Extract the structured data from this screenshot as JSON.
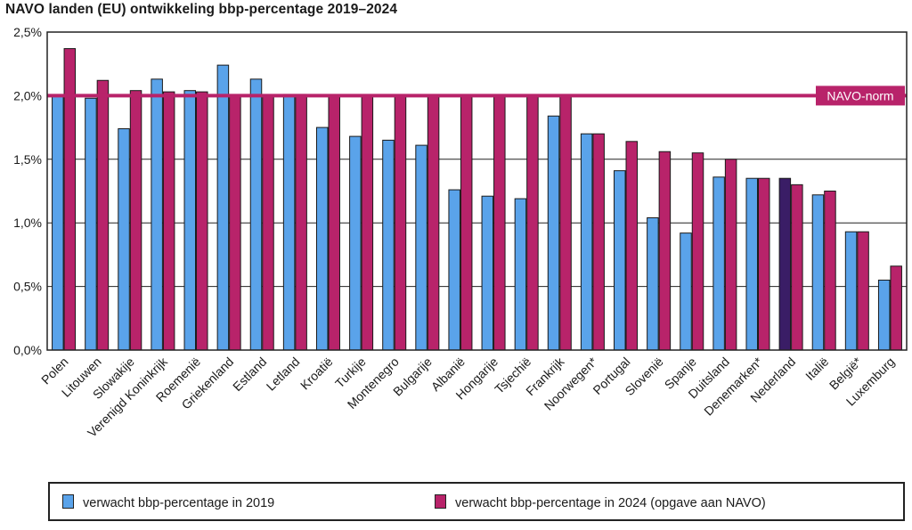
{
  "chart_data": {
    "type": "bar",
    "title": "NAVO landen (EU) ontwikkeling bbp-percentage 2019–2024",
    "xlabel": "",
    "ylabel": "",
    "ylim": [
      0,
      2.5
    ],
    "yticks": [
      "0,0%",
      "0,5%",
      "1,0%",
      "1,5%",
      "2,0%",
      "2,5%"
    ],
    "categories": [
      "Polen",
      "Litouwen",
      "Slowakije",
      "Verenigd Koninkrijk",
      "Roemenië",
      "Griekenland",
      "Estland",
      "Letland",
      "Kroatië",
      "Turkije",
      "Montenegro",
      "Bulgarije",
      "Albanië",
      "Hongarije",
      "Tsjechië",
      "Frankrijk",
      "Noorwegen*",
      "Portugal",
      "Slovenië",
      "Spanje",
      "Duitsland",
      "Denemarken*",
      "Nederland",
      "Italië",
      "België*",
      "Luxemburg"
    ],
    "series": [
      {
        "name": "verwacht bbp-percentage in 2019",
        "color": "#5aa3ea",
        "values": [
          2.0,
          1.98,
          1.74,
          2.13,
          2.04,
          2.24,
          2.13,
          2.01,
          1.75,
          1.68,
          1.65,
          1.61,
          1.26,
          1.21,
          1.19,
          1.84,
          1.7,
          1.41,
          1.04,
          0.92,
          1.36,
          1.35,
          1.35,
          1.22,
          0.93,
          0.55
        ]
      },
      {
        "name": "verwacht bbp-percentage in 2024 (opgave aan NAVO)",
        "color": "#b8236a",
        "values": [
          2.37,
          2.12,
          2.04,
          2.03,
          2.03,
          2.0,
          2.0,
          2.01,
          2.0,
          2.0,
          2.0,
          2.0,
          2.0,
          2.0,
          2.0,
          2.0,
          1.7,
          1.64,
          1.56,
          1.55,
          1.5,
          1.35,
          1.3,
          1.25,
          0.93,
          0.66
        ]
      }
    ],
    "highlight": {
      "category": "Nederland",
      "series": 0,
      "color": "#3a1d66"
    },
    "reference_line": {
      "value": 2.0,
      "label": "NAVO-norm",
      "color": "#b8236a"
    },
    "grid": true,
    "legend_position": "bottom"
  }
}
